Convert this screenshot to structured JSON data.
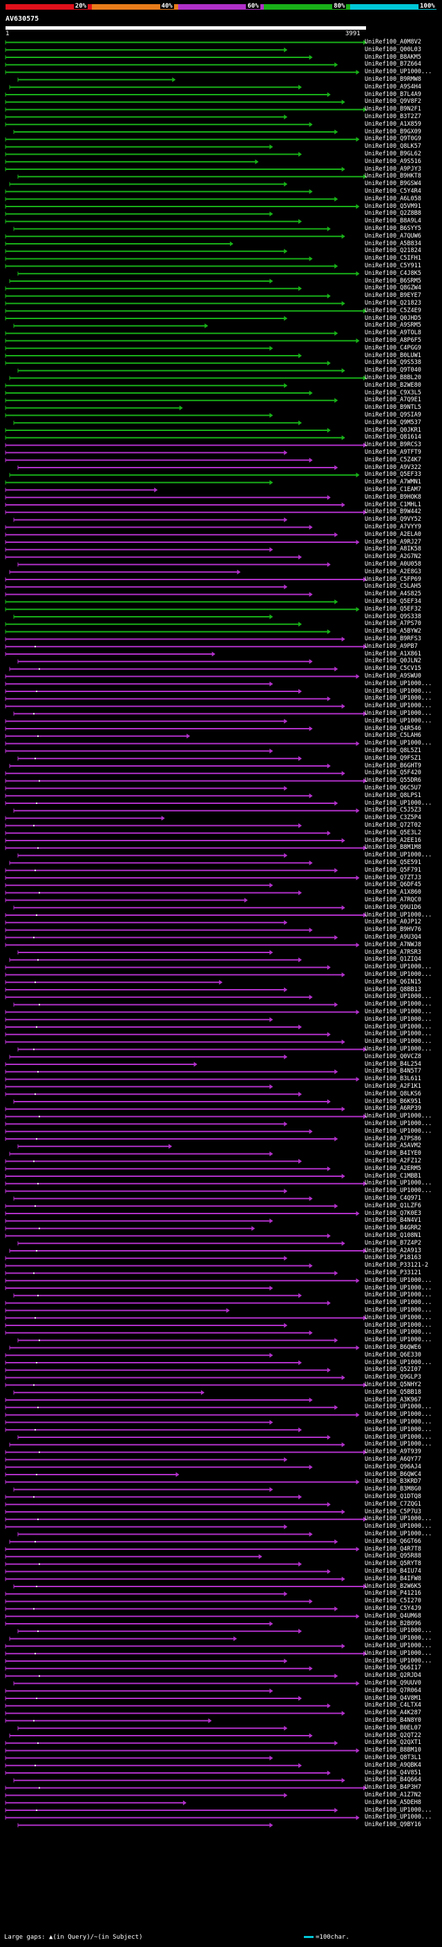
{
  "legend": {
    "labels": [
      "20%",
      "40%",
      "60%",
      "80%",
      "100%"
    ],
    "colors": [
      "#e0101a",
      "#e87c1a",
      "#b030c8",
      "#18b018",
      "#00c8d8"
    ]
  },
  "query": {
    "id": "AV630575",
    "start": "1",
    "end": "3991"
  },
  "hits": [
    "UniRef100_A0M8V2",
    "UniRef100_Q00L03",
    "UniRef100_B8AKM5",
    "UniRef100_B7Z664",
    "UniRef100_UP1000...",
    "UniRef100_B9RMW8",
    "UniRef100_A9S4H4",
    "UniRef100_B7L4A9",
    "UniRef100_Q9V8F2",
    "UniRef100_B9N2F1",
    "UniRef100_B3T2Z7",
    "UniRef100_A1X859",
    "UniRef100_B9GX09",
    "UniRef100_Q9T0G9",
    "UniRef100_Q8LK57",
    "UniRef100_B9GL62",
    "UniRef100_A9S516",
    "UniRef100_A9PJY3",
    "UniRef100_B9HKT8",
    "UniRef100_B9GSW4",
    "UniRef100_C5Y4R4",
    "UniRef100_A6L058",
    "UniRef100_Q5VM91",
    "UniRef100_Q2Z8B8",
    "UniRef100_B8A9L4",
    "UniRef100_B6SYY5",
    "UniRef100_A7QUW6",
    "UniRef100_A5B834",
    "UniRef100_Q21824",
    "UniRef100_C5IFH1",
    "UniRef100_C5Y911",
    "UniRef100_C4J8K5",
    "UniRef100_B6SRM5",
    "UniRef100_Q8GZW4",
    "UniRef100_B9EYE7",
    "UniRef100_Q21823",
    "UniRef100_C5Z4E9",
    "UniRef100_Q0JHD5",
    "UniRef100_A9SRM5",
    "UniRef100_A9TOL8",
    "UniRef100_A8P6F5",
    "UniRef100_C4PGG9",
    "UniRef100_B0LUW1",
    "UniRef100_Q9S538",
    "UniRef100_Q9T040",
    "UniRef100_B8BL20",
    "UniRef100_B2WE80",
    "UniRef100_C9X3L5",
    "UniRef100_A7Q9E1",
    "UniRef100_B9NTL5",
    "UniRef100_Q9SIA9",
    "UniRef100_Q9M537",
    "UniRef100_Q0JKR1",
    "UniRef100_Q81614",
    "UniRef100_B9RCS3",
    "UniRef100_A9TFT9",
    "UniRef100_C5Z4K7",
    "UniRef100_A9V322",
    "UniRef100_Q5EF33",
    "UniRef100_A7WMN1",
    "UniRef100_C1EAM7",
    "UniRef100_B9HOK8",
    "UniRef100_C1MHL1",
    "UniRef100_B9W442",
    "UniRef100_Q9VY52",
    "UniRef100_A7VYY9",
    "UniRef100_A2ELA0",
    "UniRef100_A9RJ27",
    "UniRef100_A8IK58",
    "UniRef100_A2G7N2",
    "UniRef100_A0U058",
    "UniRef100_A2E8G3",
    "UniRef100_C5FP69",
    "UniRef100_C5LAH5",
    "UniRef100_A4S825",
    "UniRef100_Q5EF34",
    "UniRef100_Q5EF32",
    "UniRef100_Q9S338",
    "UniRef100_A7PS70",
    "UniRef100_A5BYW2",
    "UniRef100_B9RFS3",
    "UniRef100_A9PB7",
    "UniRef100_A1X861",
    "UniRef100_Q0JLN2",
    "UniRef100_C5CV15",
    "UniRef100_A9SWU0",
    "UniRef100_UP1000...",
    "UniRef100_UP1000...",
    "UniRef100_UP1000...",
    "UniRef100_UP1000...",
    "UniRef100_UP1000...",
    "UniRef100_UP1000...",
    "UniRef100_Q4R546",
    "UniRef100_C5LAH6",
    "UniRef100_UP1000...",
    "UniRef100_Q8L5Z1",
    "UniRef100_Q9FSZ1",
    "UniRef100_B6GHT9",
    "UniRef100_Q5F420",
    "UniRef100_Q55DR6",
    "UniRef100_Q6C5U7",
    "UniRef100_Q8LPS1",
    "UniRef100_UP1000...",
    "UniRef100_C5J5Z3",
    "UniRef100_C3Z5P4",
    "UniRef100_Q72T02",
    "UniRef100_Q5E3L2",
    "UniRef100_A2EE16",
    "UniRef100_B8M1M8",
    "UniRef100_UP1000...",
    "UniRef100_Q5E591",
    "UniRef100_Q5F791",
    "UniRef100_Q7ZTJ3",
    "UniRef100_Q6DF45",
    "UniRef100_A1X860",
    "UniRef100_A7RQC0",
    "UniRef100_Q9U1D6",
    "UniRef100_UP1000...",
    "UniRef100_A0JP12",
    "UniRef100_B9HV76",
    "UniRef100_A9U3Q4",
    "UniRef100_A7NWJ8",
    "UniRef100_A7RSR3",
    "UniRef100_Q1ZIQ4",
    "UniRef100_UP1000...",
    "UniRef100_UP1000...",
    "UniRef100_Q6IN15",
    "UniRef100_Q8BB13",
    "UniRef100_UP1000...",
    "UniRef100_UP1000...",
    "UniRef100_UP1000...",
    "UniRef100_UP1000...",
    "UniRef100_UP1000...",
    "UniRef100_UP1000...",
    "UniRef100_UP1000...",
    "UniRef100_UP1000...",
    "UniRef100_Q0VCZ8",
    "UniRef100_B4L254",
    "UniRef100_B4N5T7",
    "UniRef100_B3L611",
    "UniRef100_A2F1K1",
    "UniRef100_Q8LKS6",
    "UniRef100_B6K951",
    "UniRef100_A6RP39",
    "UniRef100_UP1000...",
    "UniRef100_UP1000...",
    "UniRef100_UP1000...",
    "UniRef100_A7PS86",
    "UniRef100_A5AVM2",
    "UniRef100_B4IYE0",
    "UniRef100_A2FZ12",
    "UniRef100_A2ERM5",
    "UniRef100_C1MBB1",
    "UniRef100_UP1000...",
    "UniRef100_UP1000...",
    "UniRef100_C4Q971",
    "UniRef100_Q1LZF6",
    "UniRef100_Q7K0E3",
    "UniRef100_B4N4V1",
    "UniRef100_B4GRR2",
    "UniRef100_Q108N1",
    "UniRef100_B7Z4P2",
    "UniRef100_A2A913",
    "UniRef100_P18163",
    "UniRef100_P33121-2",
    "UniRef100_P33121",
    "UniRef100_UP1000...",
    "UniRef100_UP1000...",
    "UniRef100_UP1000...",
    "UniRef100_UP1000...",
    "UniRef100_UP1000...",
    "UniRef100_UP1000...",
    "UniRef100_UP1000...",
    "UniRef100_UP1000...",
    "UniRef100_UP1000...",
    "UniRef100_B6QWE6",
    "UniRef100_Q6E330",
    "UniRef100_UP1000...",
    "UniRef100_Q52I07",
    "UniRef100_Q9GLP3",
    "UniRef100_Q5NHY2",
    "UniRef100_Q5BB18",
    "UniRef100_A3K967",
    "UniRef100_UP1000...",
    "UniRef100_UP1000...",
    "UniRef100_UP1000...",
    "UniRef100_UP1000...",
    "UniRef100_UP1000...",
    "UniRef100_UP1000...",
    "UniRef100_A9T939",
    "UniRef100_A6QY77",
    "UniRef100_Q96AJ4",
    "UniRef100_B6QWC4",
    "UniRef100_B3KRD7",
    "UniRef100_B3M8G0",
    "UniRef100_Q1DTQ8",
    "UniRef100_C7ZQG1",
    "UniRef100_C5P7U3",
    "UniRef100_UP1000...",
    "UniRef100_UP1000...",
    "UniRef100_UP1000...",
    "UniRef100_Q6GT66",
    "UniRef100_Q4R7T8",
    "UniRef100_Q95R88",
    "UniRef100_Q5RYT8",
    "UniRef100_B4IU74",
    "UniRef100_B4IFW8",
    "UniRef100_B2W6K5",
    "UniRef100_P41216",
    "UniRef100_C5I270",
    "UniRef100_C5Y4J9",
    "UniRef100_Q4UM68",
    "UniRef100_B2B096",
    "UniRef100_UP1000...",
    "UniRef100_UP1000...",
    "UniRef100_UP1000...",
    "UniRef100_UP1000...",
    "UniRef100_UP1000...",
    "UniRef100_Q66I17",
    "UniRef100_Q2RJD4",
    "UniRef100_Q9UUV0",
    "UniRef100_Q7R064",
    "UniRef100_Q4V8M1",
    "UniRef100_C4LTX4",
    "UniRef100_A4K287",
    "UniRef100_B4N8Y0",
    "UniRef100_B0EL07",
    "UniRef100_Q2QT22",
    "UniRef100_Q2QXT1",
    "UniRef100_B8BM10",
    "UniRef100_Q8T3L1",
    "UniRef100_A9QBK4",
    "UniRef100_Q4V851",
    "UniRef100_B4Q664",
    "UniRef100_B4P3H7",
    "UniRef100_A1Z7N2",
    "UniRef100_A5DEH8",
    "UniRef100_UP1000...",
    "UniRef100_UP1000...",
    "UniRef100_Q9BY16"
  ],
  "footer": {
    "large_gaps": "Large gaps: ▲(in Query)/~(in Subject)",
    "scale": "=100char."
  }
}
